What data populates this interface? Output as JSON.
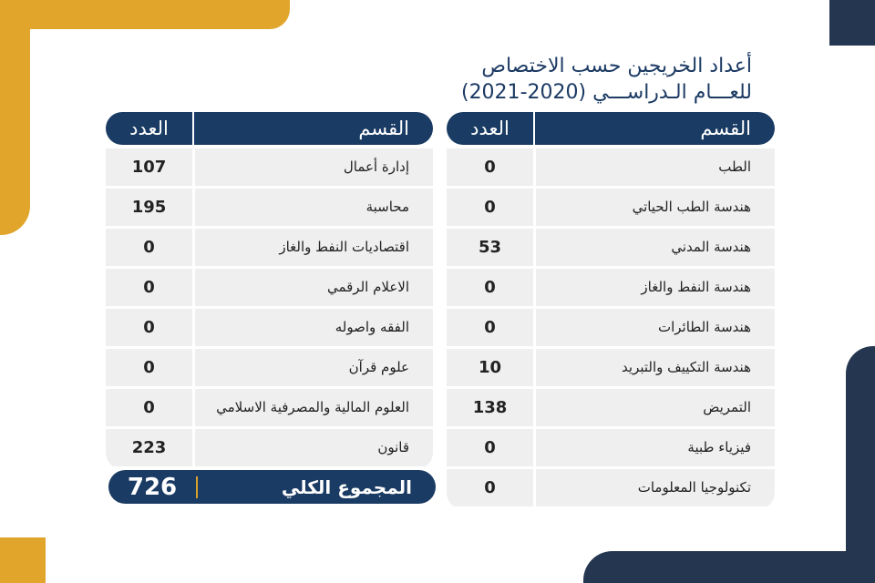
{
  "colors": {
    "navy": "#1a3b63",
    "dark": "#253750",
    "gold": "#e0a52a",
    "row": "#efefef"
  },
  "title": {
    "line1": "أعداد الخريجين حسب الاختصاص",
    "line2": "للعـــام الـدراســـي (2020-2021)"
  },
  "right_table": {
    "header": {
      "department": "القسم",
      "count": "العدد"
    },
    "rows": [
      {
        "department": "الطب",
        "count": "0"
      },
      {
        "department": "هندسة الطب الحياتي",
        "count": "0"
      },
      {
        "department": "هندسة المدني",
        "count": "53"
      },
      {
        "department": "هندسة النفط والغاز",
        "count": "0"
      },
      {
        "department": "هندسة الطائرات",
        "count": "0"
      },
      {
        "department": "هندسة التكييف والتبريد",
        "count": "10"
      },
      {
        "department": "التمريض",
        "count": "138"
      },
      {
        "department": "فيزياء طبية",
        "count": "0"
      },
      {
        "department": "تكنولوجيا المعلومات",
        "count": "0"
      }
    ]
  },
  "left_table": {
    "header": {
      "department": "القسم",
      "count": "العدد"
    },
    "rows": [
      {
        "department": "إدارة أعمال",
        "count": "107"
      },
      {
        "department": "محاسبة",
        "count": "195"
      },
      {
        "department": "اقتصاديات النفط والغاز",
        "count": "0"
      },
      {
        "department": "الاعلام الرقمي",
        "count": "0"
      },
      {
        "department": "الفقه واصوله",
        "count": "0"
      },
      {
        "department": "علوم قرآن",
        "count": "0"
      },
      {
        "department": "العلوم المالية والمصرفية الاسلامي",
        "count": "0"
      },
      {
        "department": "قانون",
        "count": "223"
      }
    ]
  },
  "total": {
    "label": "المجموع الكلي",
    "value": "726"
  }
}
